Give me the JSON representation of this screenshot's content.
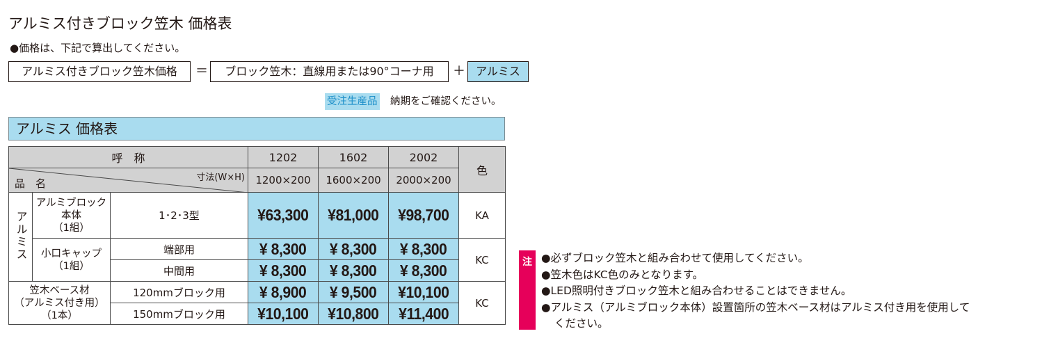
{
  "title": "アルミス付きブロック笠木 価格表",
  "intro": "●価格は、下記で算出してください。",
  "formula": {
    "left": "アルミス付きブロック笠木価格",
    "equals": "＝",
    "middle": "ブロック笠木：直線用または90°コーナ用",
    "plus": "＋",
    "right": "アルミス"
  },
  "made_to_order": {
    "badge": "受注生産品",
    "text": "納期をご確認ください。"
  },
  "section_title": "アルミス 価格表",
  "table": {
    "header": {
      "nominal": "呼　称",
      "dimension": "寸法(W×H)",
      "product_name": "品　名",
      "models": [
        "1202",
        "1602",
        "2002"
      ],
      "sizes": [
        "1200×200",
        "1600×200",
        "2000×200"
      ],
      "color": "色"
    },
    "group_label": "アルミス",
    "rows": [
      {
        "name": "アルミブロック\n本体\n（1組）",
        "type": "1･2･3型",
        "prices": [
          "¥63,300",
          "¥81,000",
          "¥98,700"
        ],
        "color": "KA"
      },
      {
        "name": "小口キャップ\n（1組）",
        "type": "端部用",
        "prices": [
          "¥  8,300",
          "¥  8,300",
          "¥  8,300"
        ],
        "color": "KC"
      },
      {
        "type": "中間用",
        "prices": [
          "¥  8,300",
          "¥  8,300",
          "¥  8,300"
        ]
      },
      {
        "name": "笠木ベース材\n（アルミス付き用）\n（1本）",
        "type": "120mmブロック用",
        "prices": [
          "¥  8,900",
          "¥  9,500",
          "¥10,100"
        ],
        "color": "KC"
      },
      {
        "type": "150mmブロック用",
        "prices": [
          "¥10,100",
          "¥10,800",
          "¥11,400"
        ]
      }
    ]
  },
  "notes": {
    "badge": "注",
    "items": [
      "●必ずブロック笠木と組み合わせて使用してください。",
      "●笠木色はKC色のみとなります。",
      "●LED照明付きブロック笠木と組み合わせることはできません。",
      "●アルミス（アルミブロック本体）設置箇所の笠木ベース材はアルミス付き用を使用して",
      "ください。"
    ]
  },
  "colors": {
    "accent_blue": "#a9dcef",
    "badge_text_blue": "#1d8fc9",
    "note_badge": "#e6005a",
    "header_gray": "#d2d2d2"
  }
}
